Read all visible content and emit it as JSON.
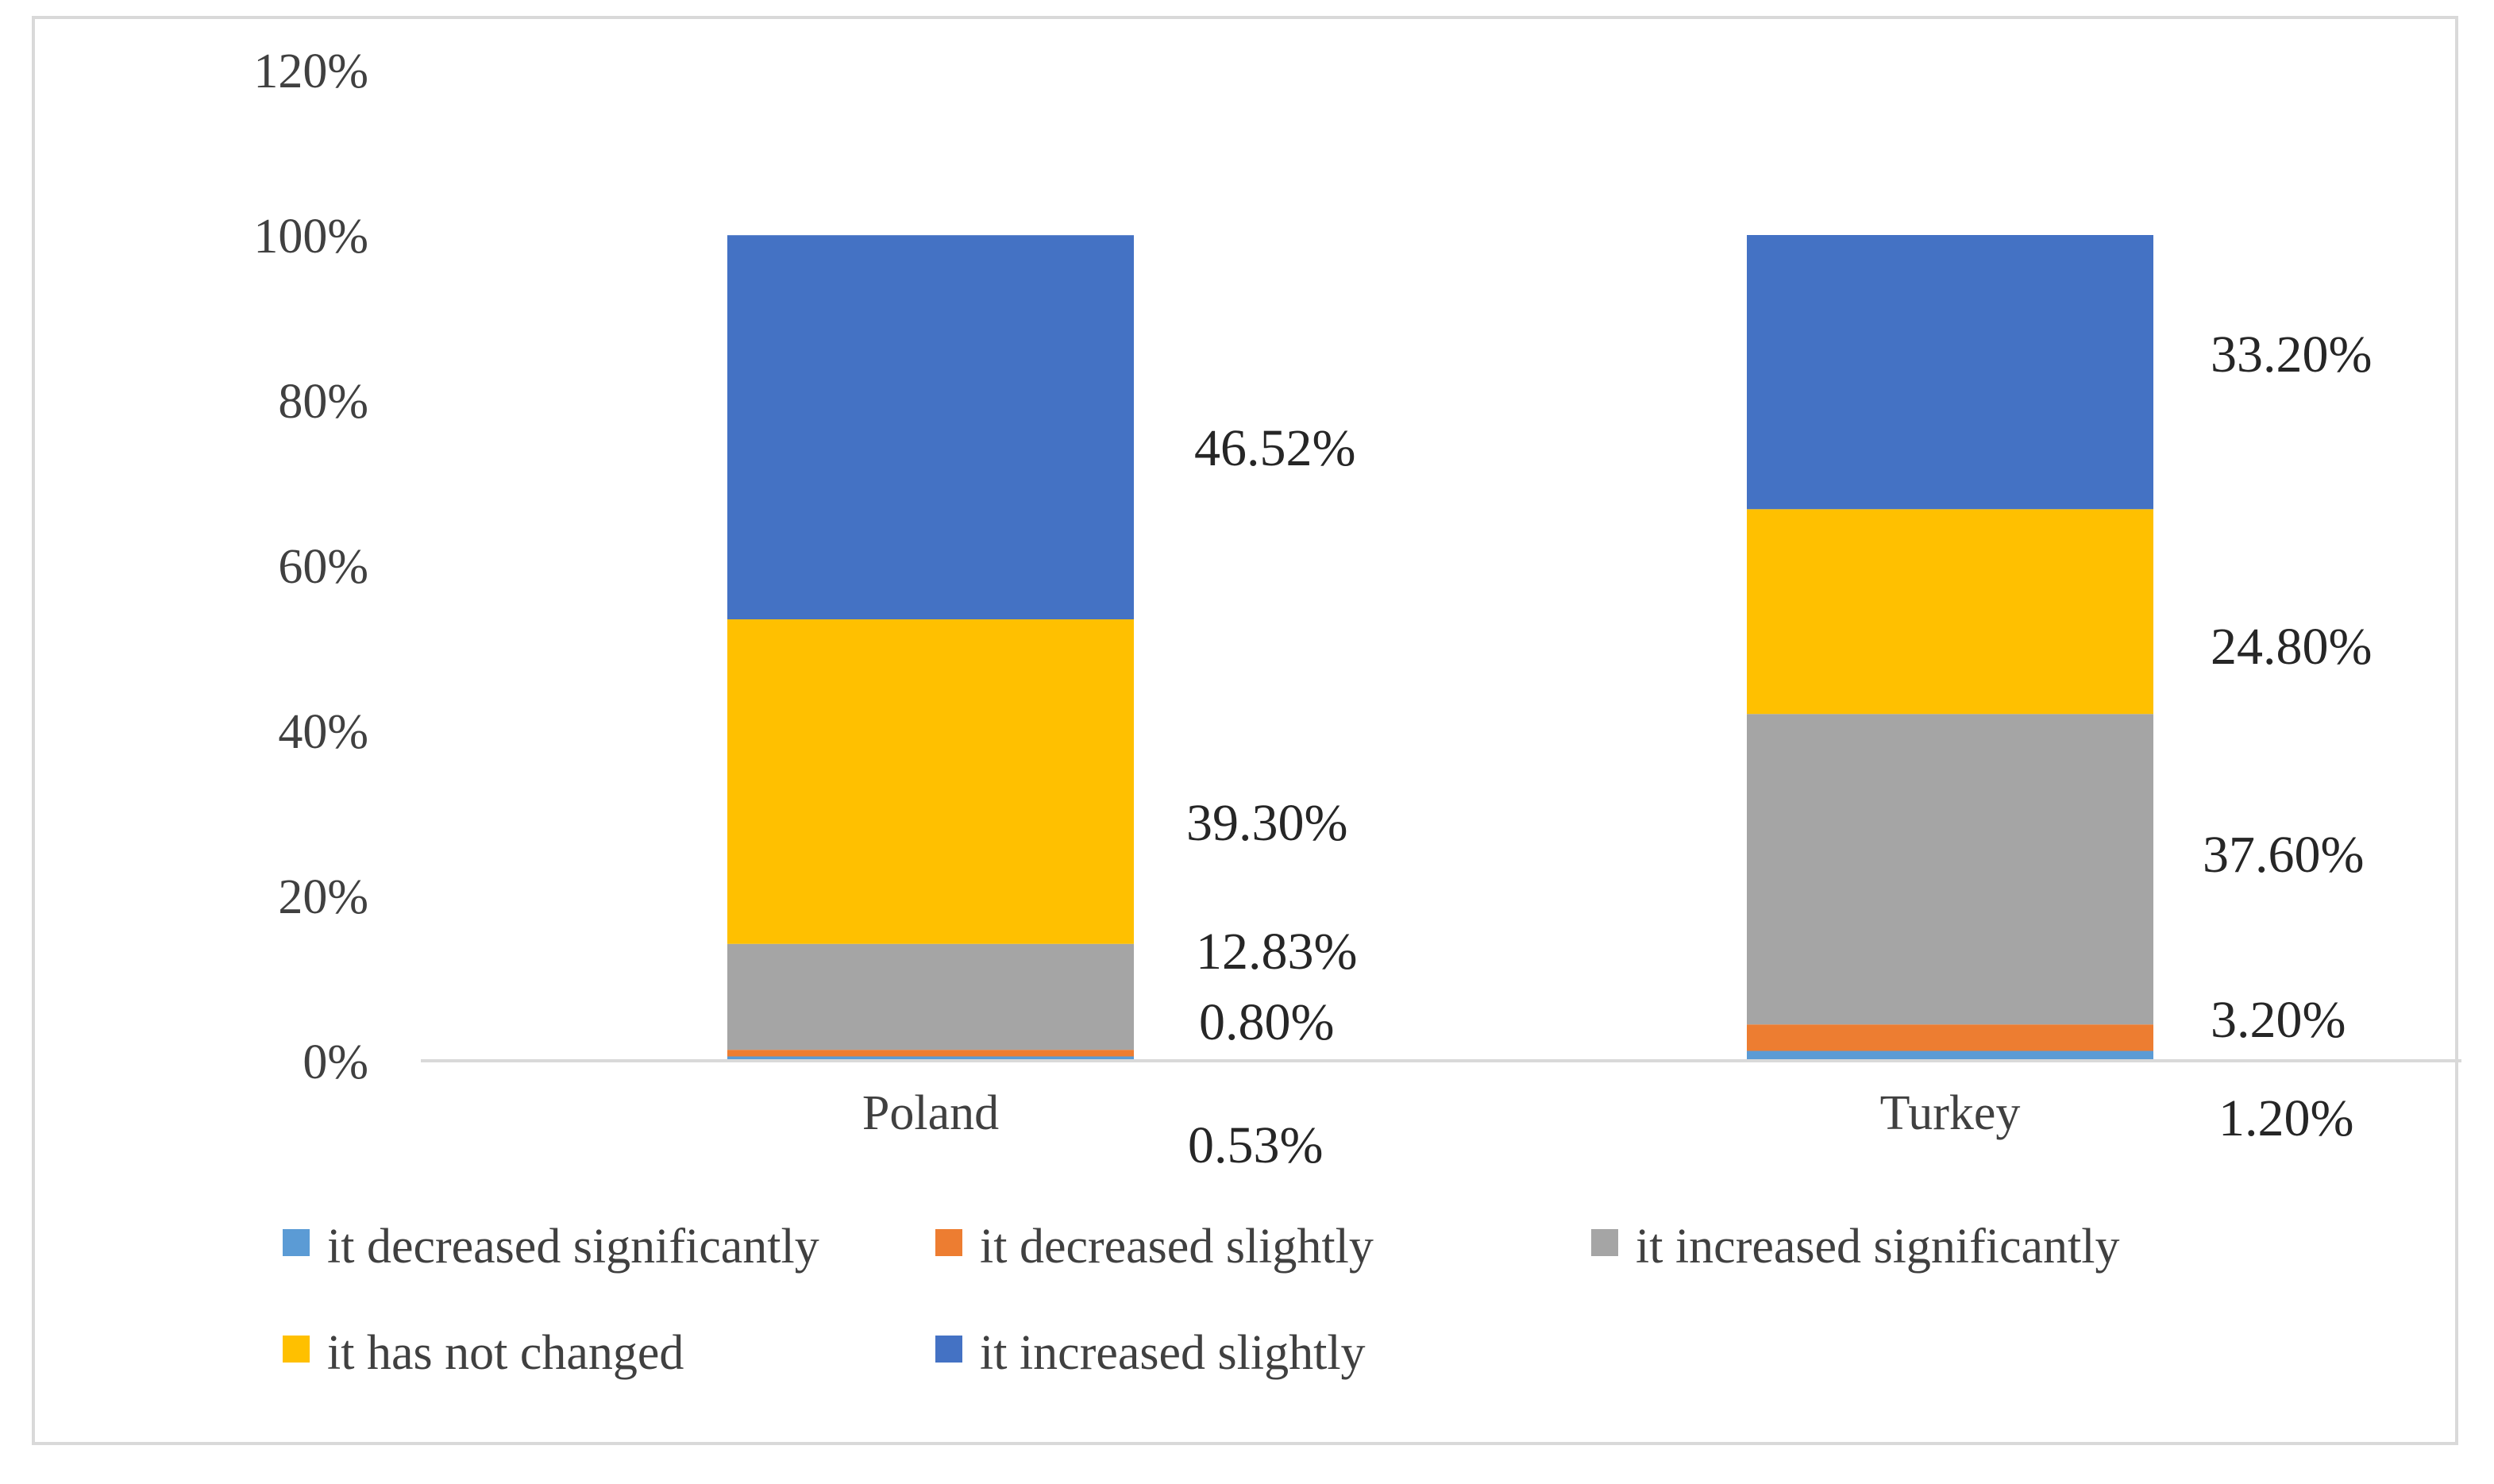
{
  "chart_data": {
    "type": "bar",
    "stacked": true,
    "title": "",
    "xlabel": "",
    "ylabel": "",
    "ylim": [
      0,
      120
    ],
    "yticks": [
      0,
      20,
      40,
      60,
      80,
      100,
      120
    ],
    "ytick_labels": [
      "0%",
      "20%",
      "40%",
      "60%",
      "80%",
      "100%",
      "120%"
    ],
    "grid": false,
    "legend_position": "bottom",
    "categories": [
      "Poland",
      "Turkey"
    ],
    "series": [
      {
        "name": "it decreased significantly",
        "color": "#5b9bd5",
        "values": [
          0.53,
          1.2
        ],
        "labels": [
          "0.53%",
          "1.20%"
        ]
      },
      {
        "name": "it decreased slightly",
        "color": "#ed7d31",
        "values": [
          0.8,
          3.2
        ],
        "labels": [
          "0.80%",
          "3.20%"
        ]
      },
      {
        "name": "it increased significantly",
        "color": "#a5a5a5",
        "values": [
          12.83,
          37.6
        ],
        "labels": [
          "12.83%",
          "37.60%"
        ]
      },
      {
        "name": "it has not changed",
        "color": "#ffc000",
        "values": [
          39.3,
          24.8
        ],
        "labels": [
          "39.30%",
          "24.80%"
        ]
      },
      {
        "name": "it increased slightly",
        "color": "#4472c4",
        "values": [
          46.52,
          33.2
        ],
        "labels": [
          "46.52%",
          "33.20%"
        ]
      }
    ]
  }
}
